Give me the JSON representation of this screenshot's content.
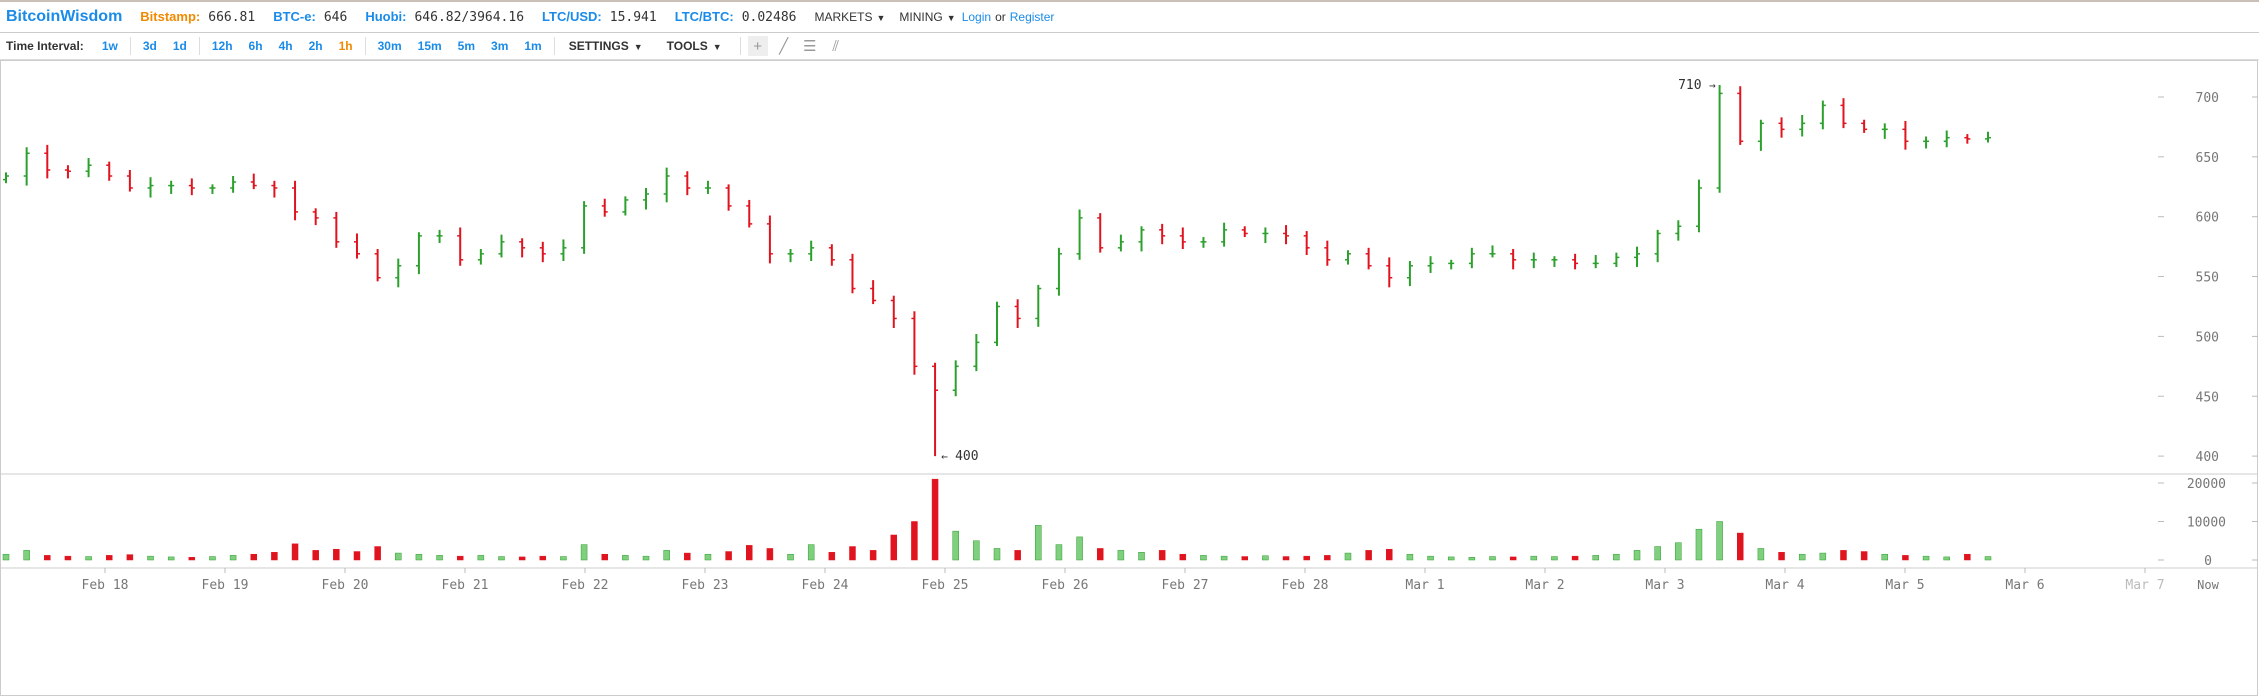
{
  "header": {
    "logo": "BitcoinWisdom",
    "tickers": [
      {
        "name": "Bitstamp:",
        "value": "666.81",
        "highlight": true
      },
      {
        "name": "BTC-e:",
        "value": "646",
        "highlight": false
      },
      {
        "name": "Huobi:",
        "value": "646.82/3964.16",
        "highlight": false
      },
      {
        "name": "LTC/USD:",
        "value": "15.941",
        "highlight": false
      },
      {
        "name": "LTC/BTC:",
        "value": "0.02486",
        "highlight": false
      }
    ],
    "menus": [
      "MARKETS",
      "MINING"
    ],
    "login": "Login",
    "or": "or",
    "register": "Register"
  },
  "toolbar": {
    "time_interval_label": "Time Interval:",
    "intervals": [
      [
        "1w"
      ],
      [
        "3d",
        "1d"
      ],
      [
        "12h",
        "6h",
        "4h",
        "2h",
        "1h"
      ],
      [
        "30m",
        "15m",
        "5m",
        "3m",
        "1m"
      ]
    ],
    "active_interval": "1h",
    "settings": "SETTINGS",
    "tools": "TOOLS",
    "drawing_tools": [
      "crosshair-icon",
      "line-icon",
      "horizontal-lines-icon",
      "fan-icon"
    ]
  },
  "colors": {
    "up": "#2ca02c",
    "down": "#e0141e",
    "accent": "#1a8be8",
    "highlight": "#f08a00",
    "axis": "#777777"
  },
  "chart_data": {
    "type": "ohlc",
    "x_ticks": [
      "Feb 18",
      "Feb 19",
      "Feb 20",
      "Feb 21",
      "Feb 22",
      "Feb 23",
      "Feb 24",
      "Feb 25",
      "Feb 26",
      "Feb 27",
      "Feb 28",
      "Mar 1",
      "Mar 2",
      "Mar 3",
      "Mar 4",
      "Mar 5",
      "Mar 6",
      "Mar 7"
    ],
    "x_end_label": "Now",
    "price_axis": {
      "ylim": [
        385,
        715
      ],
      "ticks": [
        400,
        450,
        500,
        550,
        600,
        650,
        700
      ]
    },
    "volume_axis": {
      "ylim": [
        0,
        22000
      ],
      "ticks": [
        0,
        10000,
        20000
      ]
    },
    "max_label": "710",
    "min_label": "400",
    "max_value": 710,
    "min_value": 400,
    "close": [
      634,
      653,
      639,
      638,
      643,
      634,
      624,
      626,
      626,
      624,
      624,
      629,
      626,
      624,
      604,
      599,
      579,
      569,
      549,
      559,
      584,
      584,
      564,
      569,
      579,
      574,
      569,
      574,
      609,
      604,
      614,
      619,
      634,
      624,
      624,
      609,
      594,
      569,
      569,
      574,
      564,
      540,
      530,
      515,
      475,
      455,
      475,
      495,
      525,
      515,
      540,
      569,
      599,
      574,
      579,
      589,
      584,
      579,
      579,
      589,
      586,
      586,
      584,
      574,
      564,
      569,
      559,
      549,
      559,
      561,
      561,
      569,
      569,
      564,
      564,
      564,
      561,
      561,
      566,
      569,
      586,
      592,
      624,
      703,
      663,
      678,
      673,
      678,
      693,
      678,
      673,
      673,
      663,
      663,
      666,
      665,
      666
    ],
    "volume": [
      1500,
      2500,
      1200,
      1000,
      900,
      1200,
      1400,
      1000,
      800,
      700,
      900,
      1200,
      1500,
      2000,
      4200,
      2500,
      2800,
      2200,
      3500,
      1800,
      1500,
      1200,
      1000,
      1200,
      900,
      800,
      1000,
      900,
      4000,
      1500,
      1200,
      1000,
      2500,
      1800,
      1500,
      2200,
      3800,
      3000,
      1500,
      4000,
      2000,
      3500,
      2500,
      6500,
      10000,
      21000,
      7500,
      5000,
      3000,
      2500,
      9000,
      4000,
      6000,
      3000,
      2500,
      2000,
      2500,
      1500,
      1200,
      1000,
      900,
      1100,
      900,
      1000,
      1200,
      1800,
      2500,
      2800,
      1500,
      1000,
      800,
      700,
      900,
      800,
      1000,
      900,
      1000,
      1200,
      1500,
      2500,
      3500,
      4500,
      8000,
      10000,
      7000,
      3000,
      2000,
      1500,
      1800,
      2500,
      2200,
      1500,
      1200,
      1000,
      800,
      1500,
      900
    ]
  }
}
